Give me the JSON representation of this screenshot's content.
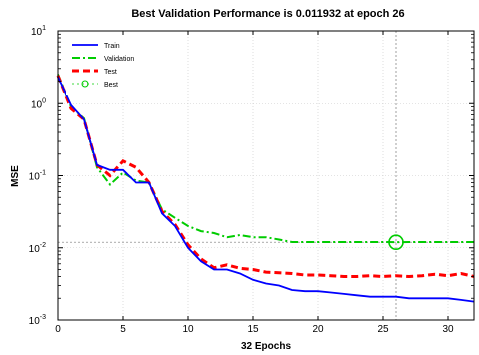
{
  "chart_data": {
    "type": "line",
    "title": "Best Validation Performance is 0.011932 at epoch 26",
    "xlabel": "32 Epochs",
    "ylabel": "MSE",
    "xlim": [
      0,
      32
    ],
    "ylim": [
      0.001,
      10
    ],
    "yscale": "log",
    "grid": "dotted",
    "legend_position": "top-left",
    "x_ticks": [
      "0",
      "5",
      "10",
      "15",
      "20",
      "25",
      "30"
    ],
    "y_ticks": [
      {
        "base": "10",
        "exp": "1",
        "value": 10
      },
      {
        "base": "10",
        "exp": "0",
        "value": 1
      },
      {
        "base": "10",
        "exp": "-1",
        "value": 0.1
      },
      {
        "base": "10",
        "exp": "-2",
        "value": 0.01
      },
      {
        "base": "10",
        "exp": "-3",
        "value": 0.001
      }
    ],
    "x": [
      0,
      1,
      2,
      3,
      4,
      5,
      6,
      7,
      8,
      9,
      10,
      11,
      12,
      13,
      14,
      15,
      16,
      17,
      18,
      19,
      20,
      21,
      22,
      23,
      24,
      25,
      26,
      27,
      28,
      29,
      30,
      31,
      32
    ],
    "series": [
      {
        "name": "Train",
        "color": "#0000ff",
        "style": "solid",
        "values": [
          2.3,
          0.95,
          0.6,
          0.14,
          0.12,
          0.12,
          0.08,
          0.08,
          0.03,
          0.02,
          0.01,
          0.0065,
          0.005,
          0.005,
          0.0044,
          0.0036,
          0.0032,
          0.003,
          0.0026,
          0.0025,
          0.0025,
          0.0024,
          0.0023,
          0.0022,
          0.0021,
          0.0021,
          0.0021,
          0.002,
          0.002,
          0.002,
          0.002,
          0.0019,
          0.0018
        ]
      },
      {
        "name": "Validation",
        "color": "#00cc00",
        "style": "dash-dot",
        "values": [
          2.5,
          0.9,
          0.62,
          0.13,
          0.075,
          0.11,
          0.085,
          0.08,
          0.034,
          0.026,
          0.02,
          0.017,
          0.016,
          0.014,
          0.015,
          0.014,
          0.014,
          0.013,
          0.012,
          0.012,
          0.012,
          0.012,
          0.012,
          0.012,
          0.012,
          0.012,
          0.011932,
          0.012,
          0.012,
          0.012,
          0.012,
          0.012,
          0.012
        ]
      },
      {
        "name": "Test",
        "color": "#ff0000",
        "style": "dashed",
        "values": [
          2.4,
          0.85,
          0.6,
          0.14,
          0.1,
          0.16,
          0.13,
          0.08,
          0.032,
          0.021,
          0.011,
          0.007,
          0.0053,
          0.0058,
          0.0052,
          0.005,
          0.0046,
          0.0045,
          0.0044,
          0.0042,
          0.0042,
          0.0041,
          0.004,
          0.004,
          0.0041,
          0.004,
          0.0041,
          0.004,
          0.0041,
          0.0043,
          0.0041,
          0.0044,
          0.004
        ]
      }
    ],
    "best": {
      "name": "Best",
      "color": "#00cc00",
      "epoch": 26,
      "value": 0.011932
    }
  }
}
